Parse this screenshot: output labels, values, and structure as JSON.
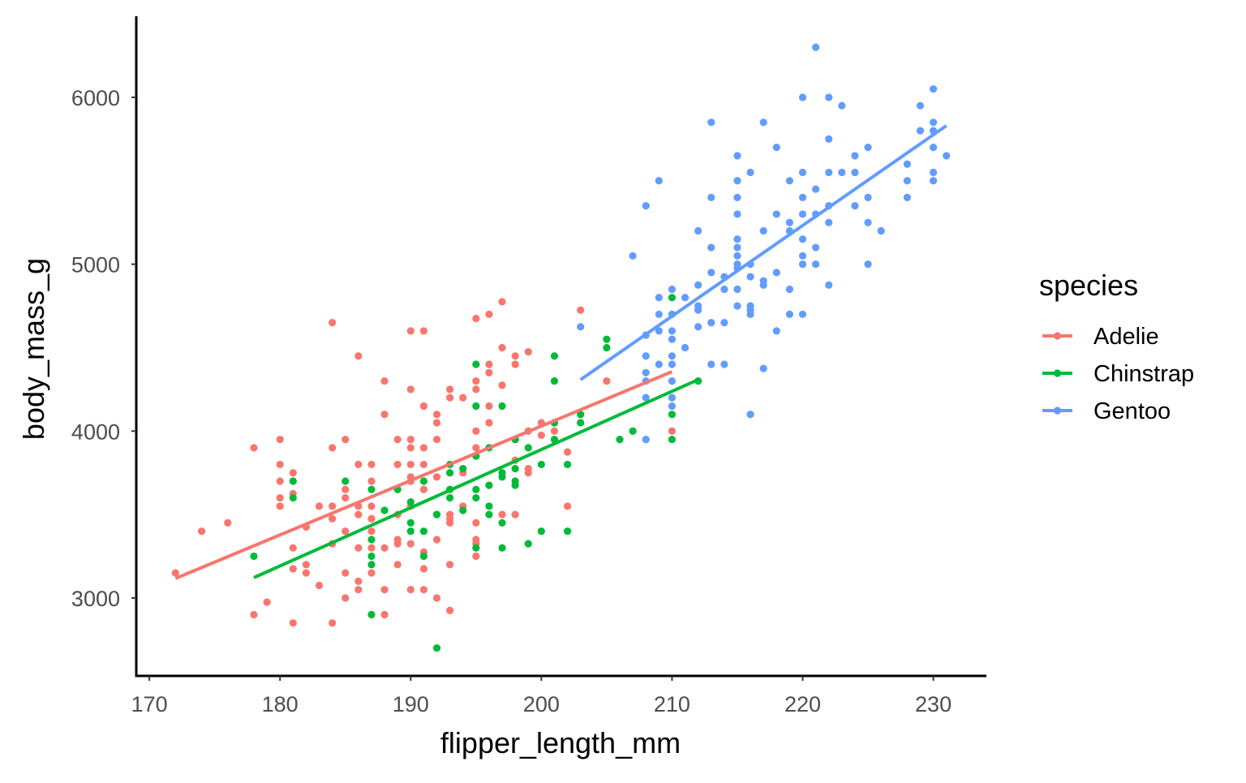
{
  "chart_data": {
    "type": "scatter",
    "xlabel": "flipper_length_mm",
    "ylabel": "body_mass_g",
    "xlim": [
      169,
      234
    ],
    "ylim": [
      2533,
      6486
    ],
    "x_ticks": [
      170,
      180,
      190,
      200,
      210,
      220,
      230
    ],
    "y_ticks": [
      3000,
      4000,
      5000,
      6000
    ],
    "grid": false,
    "legend": {
      "title": "species",
      "placement": "right"
    },
    "series": [
      {
        "name": "Adelie",
        "color": "#F8766D",
        "fit": {
          "x": [
            172,
            210
          ],
          "y": [
            3117,
            4356
          ]
        },
        "points": [
          [
            172,
            3150
          ],
          [
            174,
            3400
          ],
          [
            176,
            3450
          ],
          [
            178,
            3900
          ],
          [
            178,
            2900
          ],
          [
            179,
            2975
          ],
          [
            180,
            3950
          ],
          [
            180,
            3800
          ],
          [
            180,
            3700
          ],
          [
            180,
            3600
          ],
          [
            180,
            3550
          ],
          [
            181,
            3750
          ],
          [
            181,
            3625
          ],
          [
            181,
            3300
          ],
          [
            181,
            3175
          ],
          [
            181,
            2850
          ],
          [
            182,
            3425
          ],
          [
            182,
            3200
          ],
          [
            182,
            3150
          ],
          [
            183,
            3550
          ],
          [
            183,
            3075
          ],
          [
            184,
            4650
          ],
          [
            184,
            3900
          ],
          [
            184,
            3550
          ],
          [
            184,
            3475
          ],
          [
            184,
            3325
          ],
          [
            184,
            2850
          ],
          [
            185,
            3950
          ],
          [
            185,
            3650
          ],
          [
            185,
            3600
          ],
          [
            185,
            3400
          ],
          [
            185,
            3150
          ],
          [
            185,
            3000
          ],
          [
            186,
            4450
          ],
          [
            186,
            3800
          ],
          [
            186,
            3550
          ],
          [
            186,
            3500
          ],
          [
            186,
            3300
          ],
          [
            186,
            3100
          ],
          [
            186,
            3050
          ],
          [
            187,
            3800
          ],
          [
            187,
            3700
          ],
          [
            187,
            3550
          ],
          [
            187,
            3475
          ],
          [
            187,
            3400
          ],
          [
            187,
            3300
          ],
          [
            187,
            3150
          ],
          [
            188,
            4300
          ],
          [
            188,
            4100
          ],
          [
            188,
            3300
          ],
          [
            188,
            3050
          ],
          [
            188,
            2900
          ],
          [
            189,
            3950
          ],
          [
            189,
            3800
          ],
          [
            189,
            3500
          ],
          [
            189,
            3350
          ],
          [
            189,
            3325
          ],
          [
            189,
            3200
          ],
          [
            190,
            4600
          ],
          [
            190,
            4250
          ],
          [
            190,
            3950
          ],
          [
            190,
            3900
          ],
          [
            190,
            3800
          ],
          [
            190,
            3725
          ],
          [
            190,
            3700
          ],
          [
            190,
            3550
          ],
          [
            190,
            3325
          ],
          [
            190,
            3050
          ],
          [
            191,
            4600
          ],
          [
            191,
            4150
          ],
          [
            191,
            3900
          ],
          [
            191,
            3800
          ],
          [
            191,
            3650
          ],
          [
            191,
            3275
          ],
          [
            191,
            3175
          ],
          [
            191,
            3050
          ],
          [
            192,
            4100
          ],
          [
            192,
            4050
          ],
          [
            192,
            3950
          ],
          [
            192,
            3725
          ],
          [
            192,
            3500
          ],
          [
            192,
            3350
          ],
          [
            192,
            3000
          ],
          [
            193,
            4250
          ],
          [
            193,
            4200
          ],
          [
            193,
            3750
          ],
          [
            193,
            3500
          ],
          [
            193,
            3475
          ],
          [
            193,
            3450
          ],
          [
            193,
            3200
          ],
          [
            193,
            2925
          ],
          [
            194,
            4200
          ],
          [
            194,
            3750
          ],
          [
            194,
            3550
          ],
          [
            195,
            4675
          ],
          [
            195,
            4300
          ],
          [
            195,
            4250
          ],
          [
            195,
            4000
          ],
          [
            195,
            3900
          ],
          [
            195,
            3350
          ],
          [
            195,
            3325
          ],
          [
            195,
            3250
          ],
          [
            195,
            3450
          ],
          [
            196,
            4700
          ],
          [
            196,
            4400
          ],
          [
            196,
            4350
          ],
          [
            196,
            4150
          ],
          [
            196,
            4050
          ],
          [
            197,
            4775
          ],
          [
            197,
            4500
          ],
          [
            197,
            4275
          ],
          [
            197,
            3500
          ],
          [
            198,
            4450
          ],
          [
            198,
            4400
          ],
          [
            198,
            3950
          ],
          [
            198,
            3825
          ],
          [
            198,
            3500
          ],
          [
            199,
            4475
          ],
          [
            199,
            4000
          ],
          [
            199,
            3775
          ],
          [
            199,
            3750
          ],
          [
            200,
            4050
          ],
          [
            200,
            3975
          ],
          [
            201,
            4050
          ],
          [
            201,
            4000
          ],
          [
            202,
            3875
          ],
          [
            202,
            3550
          ],
          [
            203,
            4725
          ],
          [
            205,
            4300
          ],
          [
            210,
            4000
          ]
        ]
      },
      {
        "name": "Chinstrap",
        "color": "#00BA38",
        "fit": {
          "x": [
            178,
            212
          ],
          "y": [
            3122,
            4308
          ]
        },
        "points": [
          [
            178,
            3250
          ],
          [
            181,
            3700
          ],
          [
            181,
            3600
          ],
          [
            185,
            3700
          ],
          [
            187,
            3650
          ],
          [
            187,
            3350
          ],
          [
            187,
            3250
          ],
          [
            187,
            3200
          ],
          [
            187,
            2900
          ],
          [
            188,
            3525
          ],
          [
            189,
            3650
          ],
          [
            190,
            3575
          ],
          [
            190,
            3450
          ],
          [
            190,
            3400
          ],
          [
            191,
            3700
          ],
          [
            191,
            3400
          ],
          [
            191,
            3250
          ],
          [
            192,
            2700
          ],
          [
            192,
            3500
          ],
          [
            193,
            3800
          ],
          [
            193,
            3750
          ],
          [
            193,
            3650
          ],
          [
            193,
            3600
          ],
          [
            194,
            3775
          ],
          [
            194,
            3525
          ],
          [
            195,
            4400
          ],
          [
            195,
            4150
          ],
          [
            195,
            3850
          ],
          [
            195,
            3650
          ],
          [
            195,
            3600
          ],
          [
            195,
            3300
          ],
          [
            196,
            3900
          ],
          [
            196,
            3675
          ],
          [
            196,
            3550
          ],
          [
            196,
            3500
          ],
          [
            197,
            4150
          ],
          [
            197,
            3750
          ],
          [
            197,
            3725
          ],
          [
            197,
            3450
          ],
          [
            197,
            3300
          ],
          [
            198,
            3950
          ],
          [
            198,
            3775
          ],
          [
            198,
            3700
          ],
          [
            198,
            3675
          ],
          [
            199,
            3900
          ],
          [
            199,
            3325
          ],
          [
            200,
            3800
          ],
          [
            200,
            3400
          ],
          [
            201,
            4450
          ],
          [
            201,
            4300
          ],
          [
            201,
            4050
          ],
          [
            201,
            3950
          ],
          [
            202,
            3800
          ],
          [
            202,
            3400
          ],
          [
            203,
            4100
          ],
          [
            203,
            4050
          ],
          [
            205,
            4550
          ],
          [
            205,
            4500
          ],
          [
            206,
            3950
          ],
          [
            207,
            4000
          ],
          [
            210,
            4800
          ],
          [
            210,
            4100
          ],
          [
            210,
            3950
          ],
          [
            212,
            4300
          ]
        ]
      },
      {
        "name": "Gentoo",
        "color": "#619CFF",
        "fit": {
          "x": [
            203,
            231
          ],
          "y": [
            4308,
            5830
          ]
        },
        "points": [
          [
            203,
            4625
          ],
          [
            207,
            5050
          ],
          [
            208,
            5350
          ],
          [
            208,
            4575
          ],
          [
            208,
            4450
          ],
          [
            208,
            4350
          ],
          [
            208,
            4300
          ],
          [
            208,
            4200
          ],
          [
            208,
            3950
          ],
          [
            209,
            5500
          ],
          [
            209,
            4800
          ],
          [
            209,
            4700
          ],
          [
            209,
            4600
          ],
          [
            209,
            4400
          ],
          [
            210,
            4850
          ],
          [
            210,
            4700
          ],
          [
            210,
            4600
          ],
          [
            210,
            4550
          ],
          [
            210,
            4450
          ],
          [
            210,
            4400
          ],
          [
            210,
            4300
          ],
          [
            210,
            4200
          ],
          [
            210,
            4150
          ],
          [
            211,
            4800
          ],
          [
            211,
            4500
          ],
          [
            212,
            5200
          ],
          [
            212,
            4875
          ],
          [
            212,
            4750
          ],
          [
            212,
            4725
          ],
          [
            212,
            4625
          ],
          [
            213,
            5850
          ],
          [
            213,
            5400
          ],
          [
            213,
            5100
          ],
          [
            213,
            4950
          ],
          [
            213,
            4650
          ],
          [
            213,
            4400
          ],
          [
            214,
            4925
          ],
          [
            214,
            4850
          ],
          [
            214,
            4650
          ],
          [
            214,
            4400
          ],
          [
            215,
            5650
          ],
          [
            215,
            5500
          ],
          [
            215,
            5400
          ],
          [
            215,
            5300
          ],
          [
            215,
            5150
          ],
          [
            215,
            5100
          ],
          [
            215,
            5050
          ],
          [
            215,
            5000
          ],
          [
            215,
            4975
          ],
          [
            215,
            4850
          ],
          [
            215,
            4750
          ],
          [
            216,
            5550
          ],
          [
            216,
            5000
          ],
          [
            216,
            4925
          ],
          [
            216,
            4750
          ],
          [
            216,
            4725
          ],
          [
            216,
            4700
          ],
          [
            216,
            4100
          ],
          [
            217,
            5850
          ],
          [
            217,
            5200
          ],
          [
            217,
            4900
          ],
          [
            217,
            4875
          ],
          [
            217,
            4375
          ],
          [
            218,
            5700
          ],
          [
            218,
            5300
          ],
          [
            218,
            4950
          ],
          [
            218,
            4600
          ],
          [
            219,
            5500
          ],
          [
            219,
            5250
          ],
          [
            219,
            5200
          ],
          [
            219,
            4850
          ],
          [
            219,
            4700
          ],
          [
            220,
            6000
          ],
          [
            220,
            5550
          ],
          [
            220,
            5400
          ],
          [
            220,
            5300
          ],
          [
            220,
            5150
          ],
          [
            220,
            5050
          ],
          [
            220,
            5000
          ],
          [
            220,
            4700
          ],
          [
            221,
            6300
          ],
          [
            221,
            5450
          ],
          [
            221,
            5300
          ],
          [
            221,
            5100
          ],
          [
            221,
            5000
          ],
          [
            222,
            6000
          ],
          [
            222,
            5750
          ],
          [
            222,
            5550
          ],
          [
            222,
            5350
          ],
          [
            222,
            5250
          ],
          [
            222,
            4875
          ],
          [
            223,
            5950
          ],
          [
            223,
            5550
          ],
          [
            224,
            5650
          ],
          [
            224,
            5550
          ],
          [
            224,
            5350
          ],
          [
            225,
            5700
          ],
          [
            225,
            5400
          ],
          [
            225,
            5250
          ],
          [
            225,
            5000
          ],
          [
            226,
            5200
          ],
          [
            228,
            5600
          ],
          [
            228,
            5500
          ],
          [
            228,
            5400
          ],
          [
            229,
            5950
          ],
          [
            229,
            5800
          ],
          [
            230,
            6050
          ],
          [
            230,
            5850
          ],
          [
            230,
            5800
          ],
          [
            230,
            5700
          ],
          [
            230,
            5550
          ],
          [
            230,
            5500
          ],
          [
            231,
            5650
          ]
        ]
      }
    ]
  }
}
